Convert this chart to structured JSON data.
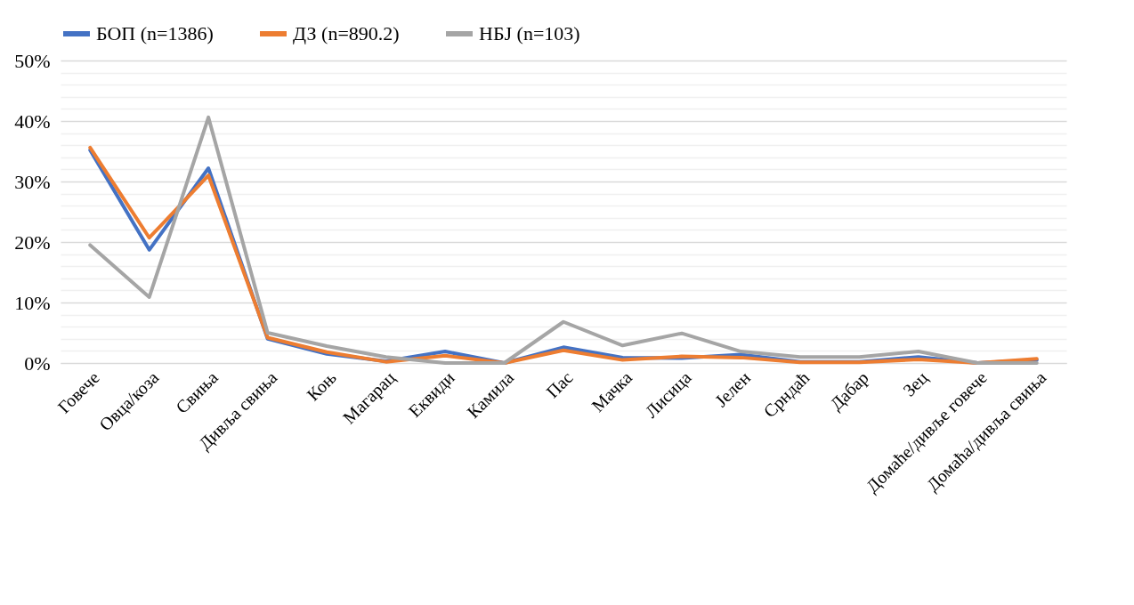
{
  "chart_data": {
    "type": "line",
    "categories": [
      "Говече",
      "Овца/коза",
      "Свиња",
      "Дивља свиња",
      "Коњ",
      "Магарац",
      "Еквиди",
      "Камила",
      "Пас",
      "Мачка",
      "Лисица",
      "Јелен",
      "Срндаћ",
      "Дабар",
      "Зец",
      "Домаће/дивље говече",
      "Домаћа/дивља свиња"
    ],
    "series": [
      {
        "name": "БОП (n=1386)",
        "color": "#4472c4",
        "values": [
          35.2,
          18.7,
          32.2,
          4.0,
          1.5,
          0.3,
          1.9,
          0,
          2.6,
          0.9,
          0.8,
          1.4,
          0.2,
          0.2,
          1.0,
          0,
          0.5
        ]
      },
      {
        "name": "ДЗ (n=890.2)",
        "color": "#ed7d31",
        "values": [
          35.6,
          20.7,
          31.0,
          4.2,
          1.8,
          0.2,
          1.2,
          0,
          2.1,
          0.5,
          1.1,
          0.9,
          0.1,
          0.1,
          0.6,
          0,
          0.7
        ]
      },
      {
        "name": "НБЈ (n=103)",
        "color": "#a5a5a5",
        "values": [
          19.5,
          10.9,
          40.6,
          5.0,
          2.8,
          1.0,
          0,
          0,
          6.8,
          2.9,
          4.9,
          1.9,
          1.0,
          1.0,
          1.9,
          0,
          0
        ]
      }
    ],
    "ylim": [
      0,
      50
    ],
    "yticks": [
      {
        "value": 0,
        "label": "0%"
      },
      {
        "value": 2,
        "label": null
      },
      {
        "value": 4,
        "label": null
      },
      {
        "value": 6,
        "label": null
      },
      {
        "value": 8,
        "label": null
      },
      {
        "value": 10,
        "label": "10%"
      },
      {
        "value": 12,
        "label": null
      },
      {
        "value": 14,
        "label": null
      },
      {
        "value": 16,
        "label": null
      },
      {
        "value": 18,
        "label": null
      },
      {
        "value": 20,
        "label": "20%"
      },
      {
        "value": 22,
        "label": null
      },
      {
        "value": 24,
        "label": null
      },
      {
        "value": 26,
        "label": null
      },
      {
        "value": 28,
        "label": null
      },
      {
        "value": 30,
        "label": "30%"
      },
      {
        "value": 32,
        "label": null
      },
      {
        "value": 34,
        "label": null
      },
      {
        "value": 36,
        "label": null
      },
      {
        "value": 38,
        "label": null
      },
      {
        "value": 40,
        "label": "40%"
      },
      {
        "value": 42,
        "label": null
      },
      {
        "value": 44,
        "label": null
      },
      {
        "value": 46,
        "label": null
      },
      {
        "value": 48,
        "label": null
      },
      {
        "value": 50,
        "label": "50%"
      }
    ],
    "grid": "y",
    "legend": "top",
    "marker": "none",
    "line_style": "solid"
  }
}
